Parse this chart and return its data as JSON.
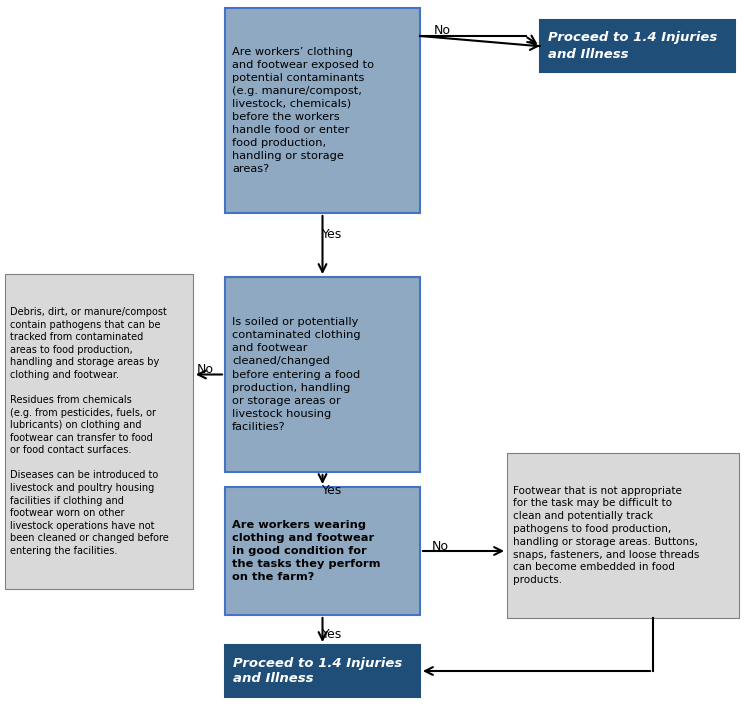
{
  "bg_color": "#ffffff",
  "question_box_color": "#8ea9c1",
  "question_box_edge": "#4472c4",
  "proceed_box_color": "#1f4e79",
  "proceed_box_edge": "#1f4e79",
  "note_box_color": "#d9d9d9",
  "note_box_edge": "#808080",
  "arrow_color": "#000000",
  "question_text_color": "#000000",
  "proceed_text_color": "#ffffff",
  "note_text_color": "#000000",
  "q1_text": "Are workers’ clothing\nand footwear exposed to\npotential contaminants\n(e.g. manure/compost,\nlivestock, chemicals)\nbefore the workers\nhandle food or enter\nfood production,\nhandling or storage\nareas?",
  "q2_text": "Is soiled or potentially\ncontaminated clothing\nand footwear\ncleaned/changed\nbefore entering a food\nproduction, handling\nor storage areas or\nlivestock housing\nfacilities?",
  "q3_text": "Are workers wearing\nclothing and footwear\nin good condition for\nthe tasks they perform\non the farm?",
  "proceed_text": "Proceed to 1.4 Injuries\nand Illness",
  "note_left_text": "Debris, dirt, or manure/compost\ncontain pathogens that can be\ntracked from contaminated\nareas to food production,\nhandling and storage areas by\nclothing and footwear.\n\nResidues from chemicals\n(e.g. from pesticides, fuels, or\nlubricants) on clothing and\nfootwear can transfer to food\nor food contact surfaces.\n\nDiseases can be introduced to\nlivestock and poultry housing\nfacilities if clothing and\nfootwear worn on other\nlivestock operations have not\nbeen cleaned or changed before\nentering the facilities.",
  "note_right_text": "Footwear that is not appropriate\nfor the task may be difficult to\nclean and potentially track\npathogens to food production,\nhandling or storage areas. Buttons,\nsnaps, fasteners, and loose threads\ncan become embedded in food\nproducts."
}
